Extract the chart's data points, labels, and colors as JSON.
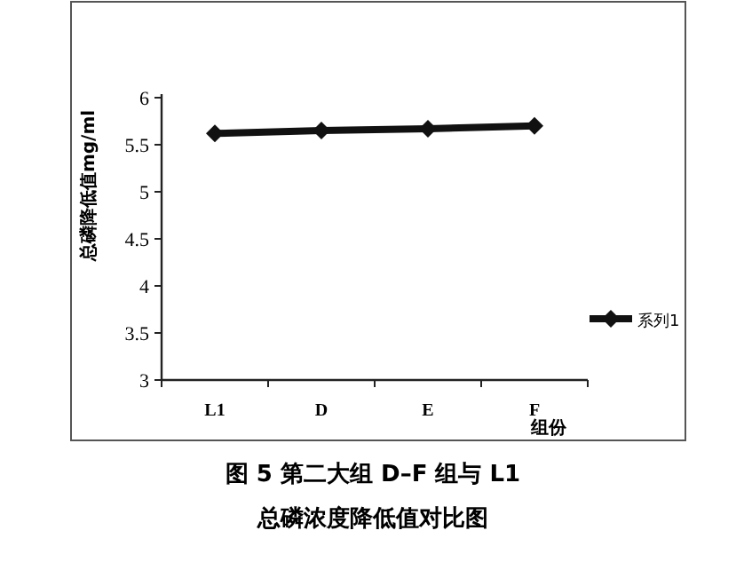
{
  "chart_data": {
    "type": "line",
    "title": "图 5 第二大组 D–F 组与 L1",
    "subtitle": "总磷浓度降低值对比图",
    "xlabel": "组份",
    "ylabel": "总磷降低值mg/ml",
    "categories": [
      "L1",
      "D",
      "E",
      "F"
    ],
    "series": [
      {
        "name": "系列1",
        "color": "#111111",
        "values": [
          5.62,
          5.65,
          5.67,
          5.7
        ]
      }
    ],
    "ylim": [
      3,
      6
    ],
    "yticks": [
      3,
      3.5,
      4,
      4.5,
      5,
      5.5,
      6
    ],
    "legend": "right",
    "marker": "diamond",
    "line_style": "solid"
  }
}
